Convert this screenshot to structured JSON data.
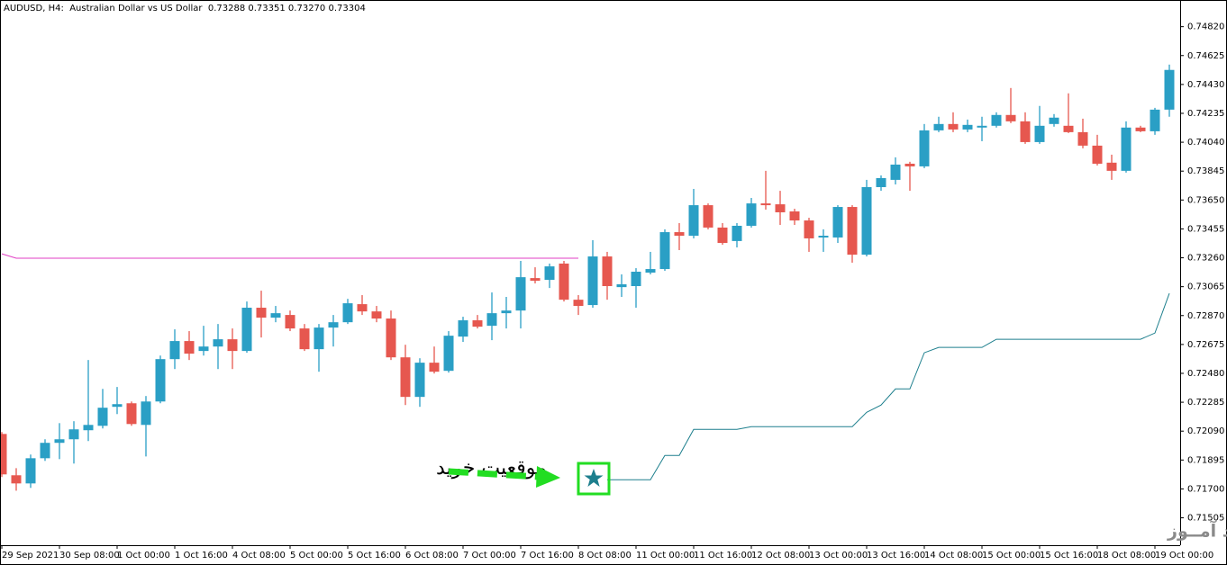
{
  "chart_data": {
    "type": "candlestick",
    "title": "AUDUSD, H4:  Australian Dollar vs US Dollar  0.73288 0.73351 0.73270 0.73304",
    "categories": [
      "29 Sep 2021",
      null,
      null,
      null,
      "30 Sep 08:00",
      null,
      null,
      null,
      "1 Oct 00:00",
      null,
      null,
      null,
      "1 Oct 16:00",
      null,
      null,
      null,
      "4 Oct 08:00",
      null,
      null,
      null,
      "5 Oct 00:00",
      null,
      null,
      null,
      "5 Oct 16:00",
      null,
      null,
      null,
      "6 Oct 08:00",
      null,
      null,
      null,
      "7 Oct 00:00",
      null,
      null,
      null,
      "7 Oct 16:00",
      null,
      null,
      null,
      "8 Oct 08:00",
      null,
      null,
      null,
      "11 Oct 00:00",
      null,
      null,
      null,
      "11 Oct 16:00",
      null,
      null,
      null,
      "12 Oct 08:00",
      null,
      null,
      null,
      "13 Oct 00:00",
      null,
      null,
      null,
      "13 Oct 16:00",
      null,
      null,
      null,
      "14 Oct 08:00",
      null,
      null,
      null,
      "15 Oct 00:00",
      null,
      null,
      null,
      "15 Oct 16:00",
      null,
      null,
      null,
      "18 Oct 08:00",
      null,
      null,
      null,
      "19 Oct 00:00",
      null
    ],
    "open": [
      0.72071,
      0.71792,
      0.71737,
      0.71907,
      0.72011,
      0.72035,
      0.72096,
      0.72126,
      0.72254,
      0.72278,
      0.72132,
      0.7229,
      0.72576,
      0.72698,
      0.72631,
      0.72661,
      0.7271,
      0.72631,
      0.72923,
      0.72856,
      0.72874,
      0.72783,
      0.72643,
      0.72789,
      0.72825,
      0.72947,
      0.72898,
      0.7285,
      0.72588,
      0.72321,
      0.72552,
      0.72497,
      0.72728,
      0.72838,
      0.72801,
      0.72886,
      0.72904,
      0.73123,
      0.73111,
      0.73221,
      0.72977,
      0.72941,
      0.73269,
      0.73062,
      0.73069,
      0.7316,
      0.73184,
      0.73433,
      0.73409,
      0.73615,
      0.73464,
      0.73373,
      0.73476,
      0.73627,
      0.73621,
      0.73573,
      0.73512,
      0.73397,
      0.73397,
      0.73603,
      0.73281,
      0.73737,
      0.73786,
      0.73895,
      0.73877,
      0.7412,
      0.74163,
      0.74126,
      0.74139,
      0.74151,
      0.74224,
      0.74181,
      0.74041,
      0.74163,
      0.74151,
      0.74108,
      0.74017,
      0.73902,
      0.73847,
      0.74139,
      0.74114,
      0.7426
    ],
    "high": [
      0.72084,
      0.7184,
      0.71932,
      0.72035,
      0.72144,
      0.72157,
      0.7257,
      0.72375,
      0.72388,
      0.7229,
      0.72327,
      0.726,
      0.72777,
      0.72765,
      0.72801,
      0.72813,
      0.72783,
      0.72965,
      0.73038,
      0.72935,
      0.72904,
      0.72813,
      0.72813,
      0.72874,
      0.72983,
      0.73008,
      0.72935,
      0.72904,
      0.72673,
      0.72582,
      0.72661,
      0.72765,
      0.72862,
      0.72874,
      0.73026,
      0.72996,
      0.73239,
      0.73196,
      0.73221,
      0.73239,
      0.73008,
      0.73379,
      0.733,
      0.73148,
      0.7319,
      0.733,
      0.73452,
      0.73494,
      0.73725,
      0.73627,
      0.73494,
      0.73494,
      0.73664,
      0.73847,
      0.73712,
      0.73591,
      0.7353,
      0.73452,
      0.73615,
      0.73615,
      0.73786,
      0.73816,
      0.73938,
      0.73908,
      0.74163,
      0.74212,
      0.74242,
      0.74193,
      0.74212,
      0.74242,
      0.74406,
      0.74242,
      0.74285,
      0.7423,
      0.7437,
      0.74199,
      0.7409,
      0.73956,
      0.74181,
      0.74151,
      0.74272,
      0.74564
    ],
    "low": [
      0.7178,
      0.71688,
      0.71707,
      0.71889,
      0.71901,
      0.71871,
      0.72023,
      0.72108,
      0.72205,
      0.72126,
      0.71919,
      0.72278,
      0.72509,
      0.7257,
      0.726,
      0.72509,
      0.72509,
      0.72619,
      0.72722,
      0.72825,
      0.72765,
      0.72631,
      0.72491,
      0.72661,
      0.72813,
      0.72874,
      0.72825,
      0.7257,
      0.72266,
      0.72254,
      0.72479,
      0.72485,
      0.72692,
      0.72783,
      0.72704,
      0.72783,
      0.72783,
      0.73087,
      0.73056,
      0.72965,
      0.72874,
      0.72923,
      0.72977,
      0.72996,
      0.72923,
      0.73148,
      0.73172,
      0.73312,
      0.73391,
      0.73452,
      0.73348,
      0.7333,
      0.73464,
      0.73585,
      0.73482,
      0.73482,
      0.733,
      0.733,
      0.7336,
      0.73227,
      0.73269,
      0.73712,
      0.73755,
      0.73712,
      0.73865,
      0.74108,
      0.74108,
      0.74108,
      0.74047,
      0.74139,
      0.74169,
      0.74029,
      0.74029,
      0.74145,
      0.74102,
      0.73999,
      0.73883,
      0.73786,
      0.73835,
      0.74108,
      0.7409,
      0.74212
    ],
    "close": [
      0.71798,
      0.71737,
      0.71907,
      0.72011,
      0.72035,
      0.72102,
      0.72132,
      0.72248,
      0.72272,
      0.72138,
      0.7229,
      0.72576,
      0.72698,
      0.72613,
      0.72661,
      0.7271,
      0.72631,
      0.72923,
      0.72856,
      0.72886,
      0.72783,
      0.72643,
      0.72789,
      0.72825,
      0.72953,
      0.72898,
      0.7285,
      0.72588,
      0.72321,
      0.72552,
      0.72491,
      0.72734,
      0.72838,
      0.72795,
      0.72886,
      0.72904,
      0.73129,
      0.73105,
      0.73202,
      0.72977,
      0.72935,
      0.73269,
      0.73069,
      0.73081,
      0.73166,
      0.73184,
      0.73433,
      0.73409,
      0.73615,
      0.73464,
      0.7336,
      0.73476,
      0.73627,
      0.73615,
      0.73567,
      0.73512,
      0.73391,
      0.73409,
      0.73603,
      0.73281,
      0.73737,
      0.73798,
      0.73889,
      0.73877,
      0.7412,
      0.74163,
      0.74126,
      0.74157,
      0.74151,
      0.74224,
      0.74181,
      0.74041,
      0.74151,
      0.74206,
      0.74108,
      0.74017,
      0.73895,
      0.73847,
      0.74139,
      0.74114,
      0.7426,
      0.74528
    ],
    "up_color": "#2a9fc5",
    "down_color": "#e6574f",
    "lines": [
      {
        "color": "#e23fc4",
        "values": [
          0.73287,
          0.73257,
          0.73257,
          0.73257,
          0.73257,
          0.73257,
          0.73257,
          0.73257,
          0.73257,
          0.73257,
          0.73257,
          0.73257,
          0.73257,
          0.73257,
          0.73257,
          0.73257,
          0.73257,
          0.73257,
          0.73257,
          0.73257,
          0.73257,
          0.73257,
          0.73257,
          0.73257,
          0.73257,
          0.73257,
          0.73257,
          0.73257,
          0.73257,
          0.73257,
          0.73257,
          0.73257,
          0.73257,
          0.73257,
          0.73257,
          0.73257,
          0.73257,
          0.73257,
          0.73257,
          0.73257,
          0.73257,
          null,
          null,
          null,
          null,
          null,
          null,
          null,
          null,
          null,
          null,
          null,
          null,
          null,
          null,
          null,
          null,
          null,
          null,
          null,
          null,
          null,
          null,
          null,
          null,
          null,
          null,
          null,
          null,
          null,
          null,
          null,
          null,
          null,
          null,
          null,
          null,
          null,
          null,
          null,
          null,
          null
        ]
      },
      {
        "color": "#1d7f8d",
        "values": [
          null,
          null,
          null,
          null,
          null,
          null,
          null,
          null,
          null,
          null,
          null,
          null,
          null,
          null,
          null,
          null,
          null,
          null,
          null,
          null,
          null,
          null,
          null,
          null,
          null,
          null,
          null,
          null,
          null,
          null,
          null,
          null,
          null,
          null,
          null,
          null,
          null,
          null,
          null,
          null,
          null,
          null,
          0.71762,
          0.71762,
          0.71762,
          0.71762,
          0.71926,
          0.71926,
          0.72102,
          0.72102,
          0.72102,
          0.72102,
          0.7212,
          0.7212,
          0.7212,
          0.7212,
          0.7212,
          0.7212,
          0.7212,
          0.7212,
          0.72217,
          0.72266,
          0.72375,
          0.72375,
          0.72619,
          0.72655,
          0.72655,
          0.72655,
          0.72655,
          0.7271,
          0.7271,
          0.7271,
          0.7271,
          0.7271,
          0.7271,
          0.7271,
          0.7271,
          0.7271,
          0.7271,
          0.7271,
          0.72752,
          0.7302
        ]
      }
    ],
    "ylim": [
      0.7132,
      0.75
    ],
    "yticks": [
      {
        "value": 0.7482,
        "label": "0.74820"
      },
      {
        "value": 0.74625,
        "label": "0.74625"
      },
      {
        "value": 0.7443,
        "label": "0.74430"
      },
      {
        "value": 0.74235,
        "label": "0.74235"
      },
      {
        "value": 0.7404,
        "label": "0.74040"
      },
      {
        "value": 0.73845,
        "label": "0.73845"
      },
      {
        "value": 0.7365,
        "label": "0.73650"
      },
      {
        "value": 0.73455,
        "label": "0.73455"
      },
      {
        "value": 0.7326,
        "label": "0.73260"
      },
      {
        "value": 0.73065,
        "label": "0.73065"
      },
      {
        "value": 0.7287,
        "label": "0.72870"
      },
      {
        "value": 0.72675,
        "label": "0.72675"
      },
      {
        "value": 0.7248,
        "label": "0.72480"
      },
      {
        "value": 0.72285,
        "label": "0.72285"
      },
      {
        "value": 0.7209,
        "label": "0.72090"
      },
      {
        "value": 0.71895,
        "label": "0.71895"
      },
      {
        "value": 0.717,
        "label": "0.71700"
      },
      {
        "value": 0.71505,
        "label": "0.71505"
      }
    ],
    "annotations": {
      "buy_position": "موقعیت خرید",
      "watermark": "انتشار در وبسایت  ســود آمــوز"
    }
  }
}
